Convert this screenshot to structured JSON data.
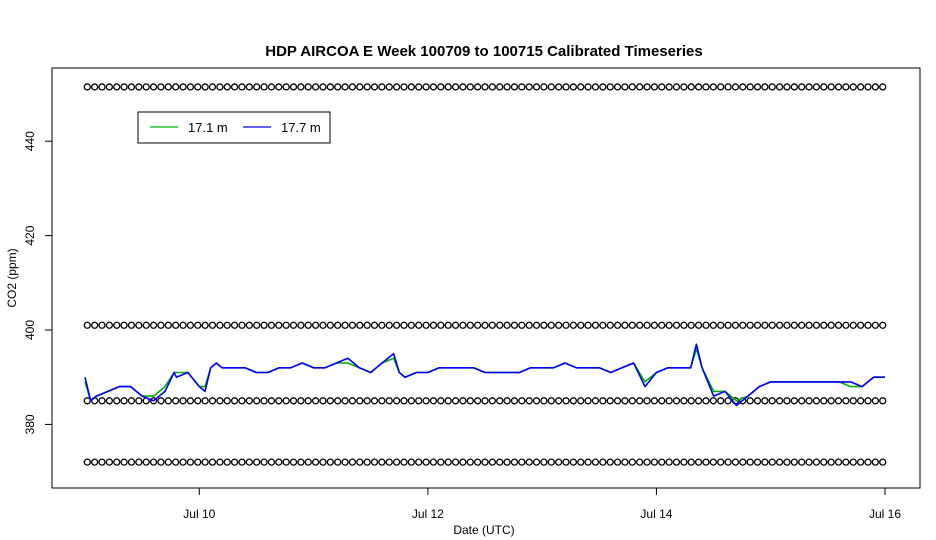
{
  "chart_data": {
    "type": "line",
    "title": "HDP AIRCOA E  Week 100709 to 100715  Calibrated Timeseries",
    "xlabel": "Date (UTC)",
    "ylabel": "CO2 (ppm)",
    "x_unit": "days since Jul 9 00:00 UTC",
    "xlim": [
      0,
      7
    ],
    "ylim": [
      366,
      455
    ],
    "x_ticks": [
      {
        "value": 1,
        "label": "Jul 10"
      },
      {
        "value": 3,
        "label": "Jul 12"
      },
      {
        "value": 5,
        "label": "Jul 14"
      },
      {
        "value": 7,
        "label": "Jul 16"
      }
    ],
    "y_ticks": [
      {
        "value": 380,
        "label": "380"
      },
      {
        "value": 400,
        "label": "400"
      },
      {
        "value": 420,
        "label": "420"
      },
      {
        "value": 440,
        "label": "440"
      }
    ],
    "legend": {
      "position": "top-left",
      "entries": [
        {
          "label": "17.1 m",
          "color": "#00b000"
        },
        {
          "label": "17.7 m",
          "color": "#0000ff"
        }
      ]
    },
    "series": [
      {
        "name": "17.7 m",
        "color": "#0000ff",
        "x": [
          0,
          0.05,
          0.1,
          0.2,
          0.3,
          0.4,
          0.5,
          0.6,
          0.7,
          0.78,
          0.8,
          0.9,
          1.0,
          1.05,
          1.1,
          1.15,
          1.2,
          1.3,
          1.4,
          1.5,
          1.6,
          1.7,
          1.8,
          1.9,
          2.0,
          2.1,
          2.2,
          2.3,
          2.4,
          2.5,
          2.6,
          2.7,
          2.75,
          2.8,
          2.9,
          3.0,
          3.1,
          3.2,
          3.3,
          3.4,
          3.5,
          3.6,
          3.7,
          3.8,
          3.9,
          4.0,
          4.1,
          4.2,
          4.3,
          4.4,
          4.5,
          4.6,
          4.7,
          4.8,
          4.9,
          5.0,
          5.1,
          5.2,
          5.3,
          5.35,
          5.4,
          5.5,
          5.6,
          5.7,
          5.8,
          5.9,
          6.0,
          6.1,
          6.2,
          6.3,
          6.4,
          6.5,
          6.6,
          6.7,
          6.8,
          6.9,
          7.0
        ],
        "y": [
          390,
          385,
          386,
          387,
          388,
          388,
          386,
          385,
          387,
          391,
          390,
          391,
          388,
          387,
          392,
          393,
          392,
          392,
          392,
          391,
          391,
          392,
          392,
          393,
          392,
          392,
          393,
          394,
          392,
          391,
          393,
          395,
          391,
          390,
          391,
          391,
          392,
          392,
          392,
          392,
          391,
          391,
          391,
          391,
          392,
          392,
          392,
          393,
          392,
          392,
          392,
          391,
          392,
          393,
          388,
          391,
          392,
          392,
          392,
          397,
          392,
          386,
          387,
          384,
          386,
          388,
          389,
          389,
          389,
          389,
          389,
          389,
          389,
          389,
          388,
          390,
          390
        ]
      },
      {
        "name": "17.1 m",
        "color": "#00b000",
        "x": [
          0,
          0.05,
          0.1,
          0.2,
          0.3,
          0.4,
          0.5,
          0.6,
          0.7,
          0.78,
          0.8,
          0.9,
          1.0,
          1.05,
          1.1,
          1.15,
          1.2,
          1.3,
          1.4,
          1.5,
          1.6,
          1.7,
          1.8,
          1.9,
          2.0,
          2.1,
          2.2,
          2.3,
          2.4,
          2.5,
          2.6,
          2.7,
          2.75,
          2.8,
          2.9,
          3.0,
          3.1,
          3.2,
          3.3,
          3.4,
          3.5,
          3.6,
          3.7,
          3.8,
          3.9,
          4.0,
          4.1,
          4.2,
          4.3,
          4.4,
          4.5,
          4.6,
          4.7,
          4.8,
          4.9,
          5.0,
          5.1,
          5.2,
          5.3,
          5.35,
          5.4,
          5.5,
          5.6,
          5.7,
          5.8,
          5.9,
          6.0,
          6.1,
          6.2,
          6.3,
          6.4,
          6.5,
          6.6,
          6.7,
          6.8,
          6.9,
          7.0
        ],
        "y": [
          389,
          385,
          386,
          387,
          388,
          388,
          386,
          386,
          388,
          391,
          391,
          391,
          388,
          388,
          392,
          393,
          392,
          392,
          392,
          391,
          391,
          392,
          392,
          393,
          392,
          392,
          393,
          393,
          392,
          391,
          393,
          394,
          391,
          390,
          391,
          391,
          392,
          392,
          392,
          392,
          391,
          391,
          391,
          391,
          392,
          392,
          392,
          393,
          392,
          392,
          392,
          391,
          392,
          393,
          389,
          391,
          392,
          392,
          392,
          396,
          392,
          387,
          387,
          385,
          386,
          388,
          389,
          389,
          389,
          389,
          389,
          389,
          389,
          388,
          388,
          390,
          390
        ]
      },
      {
        "name": "",
        "type": "scatter",
        "marker": "open-circle",
        "color": "#000000",
        "x_start": 0.02,
        "x_end": 6.98,
        "count": 109,
        "levels": [
          372,
          385,
          401,
          451.5
        ]
      }
    ]
  }
}
